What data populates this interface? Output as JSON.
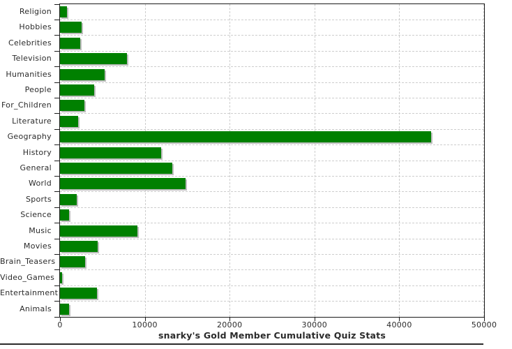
{
  "title": "snarky's Gold Member Cumulative Quiz Stats",
  "colors": {
    "bar": "#008000",
    "bar_shadow": "#bdbdbd",
    "gridline": "#cdcdcd",
    "axis": "#1a1a1a",
    "text": "#2b2b2b",
    "background": "#ffffff"
  },
  "chart_data": {
    "type": "bar",
    "orientation": "horizontal",
    "title": "snarky's Gold Member Cumulative Quiz Stats",
    "xlabel": "",
    "ylabel": "",
    "xlim": [
      0,
      50000
    ],
    "grid": "dashed",
    "legend": "none",
    "bar_color": "#008000",
    "categories": [
      "Religion",
      "Hobbies",
      "Celebrities",
      "Television",
      "Humanities",
      "People",
      "For_Children",
      "Literature",
      "Geography",
      "History",
      "General",
      "World",
      "Sports",
      "Science",
      "Music",
      "Movies",
      "Brain_Teasers",
      "Video_Games",
      "Entertainment",
      "Animals"
    ],
    "values": [
      790,
      2540,
      2350,
      7930,
      5270,
      4040,
      2890,
      2130,
      43770,
      11890,
      13250,
      14810,
      1990,
      1090,
      9150,
      4450,
      2950,
      250,
      4370,
      1040
    ],
    "x_tick_values": [
      0,
      10000,
      20000,
      30000,
      40000,
      50000
    ],
    "x_tick_labels": [
      "0",
      "10000",
      "20000",
      "30000",
      "40000",
      "50000"
    ]
  }
}
